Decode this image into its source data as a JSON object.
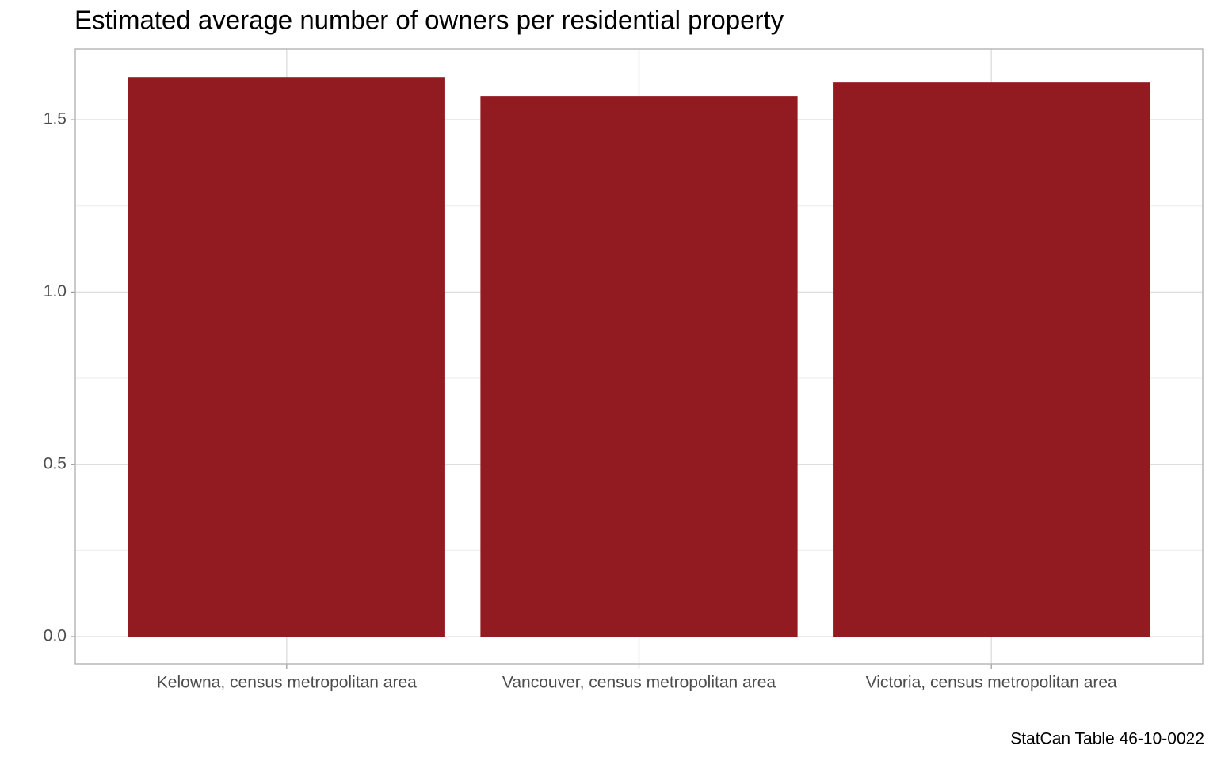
{
  "chart_data": {
    "type": "bar",
    "title": "Estimated average number of owners per residential property",
    "caption": "StatCan Table 46-10-0022",
    "categories": [
      "Kelowna, census metropolitan area",
      "Vancouver, census metropolitan area",
      "Victoria, census metropolitan area"
    ],
    "values": [
      1.624,
      1.569,
      1.608
    ],
    "color": "#921B22",
    "ylim": [
      -0.0805,
      1.705
    ],
    "yticks": [
      {
        "value": 0,
        "label": "0.0"
      },
      0.5,
      {
        "value": 1,
        "label": "1.0"
      },
      1.5
    ],
    "minor_yticks": [
      0.25,
      0.75,
      1.25
    ],
    "grid": true
  }
}
